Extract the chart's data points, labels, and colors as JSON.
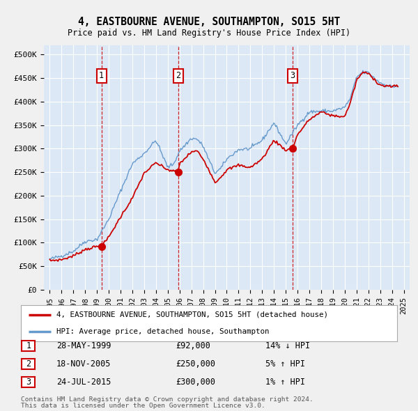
{
  "title": "4, EASTBOURNE AVENUE, SOUTHAMPTON, SO15 5HT",
  "subtitle": "Price paid vs. HM Land Registry's House Price Index (HPI)",
  "bg_color": "#f0f0f0",
  "plot_bg_color": "#dce8f5",
  "grid_color": "#ffffff",
  "red_line_color": "#cc0000",
  "blue_line_color": "#6699cc",
  "sale_marker_color": "#cc0000",
  "dashed_line_color": "#cc0000",
  "annotation_box_color": "#cc0000",
  "ylim": [
    0,
    520000
  ],
  "yticks": [
    0,
    50000,
    100000,
    150000,
    200000,
    250000,
    300000,
    350000,
    400000,
    450000,
    500000
  ],
  "ytick_labels": [
    "£0",
    "£50K",
    "£100K",
    "£150K",
    "£200K",
    "£250K",
    "£300K",
    "£350K",
    "£400K",
    "£450K",
    "£500K"
  ],
  "xlim_start": 1994.5,
  "xlim_end": 2025.5,
  "xticks": [
    1995,
    1996,
    1997,
    1998,
    1999,
    2000,
    2001,
    2002,
    2003,
    2004,
    2005,
    2006,
    2007,
    2008,
    2009,
    2010,
    2011,
    2012,
    2013,
    2014,
    2015,
    2016,
    2017,
    2018,
    2019,
    2020,
    2021,
    2022,
    2023,
    2024,
    2025
  ],
  "sales": [
    {
      "year": 1999.38,
      "price": 92000,
      "label": "1",
      "hpi_pct": "14% ↓ HPI",
      "date": "28-MAY-1999"
    },
    {
      "year": 2005.88,
      "price": 250000,
      "label": "2",
      "hpi_pct": "5% ↑ HPI",
      "date": "18-NOV-2005"
    },
    {
      "year": 2015.56,
      "price": 300000,
      "label": "3",
      "hpi_pct": "1% ↑ HPI",
      "date": "24-JUL-2015"
    }
  ],
  "legend_entries": [
    {
      "label": "4, EASTBOURNE AVENUE, SOUTHAMPTON, SO15 5HT (detached house)",
      "color": "#cc0000"
    },
    {
      "label": "HPI: Average price, detached house, Southampton",
      "color": "#6699cc"
    }
  ],
  "footer1": "Contains HM Land Registry data © Crown copyright and database right 2024.",
  "footer2": "This data is licensed under the Open Government Licence v3.0."
}
